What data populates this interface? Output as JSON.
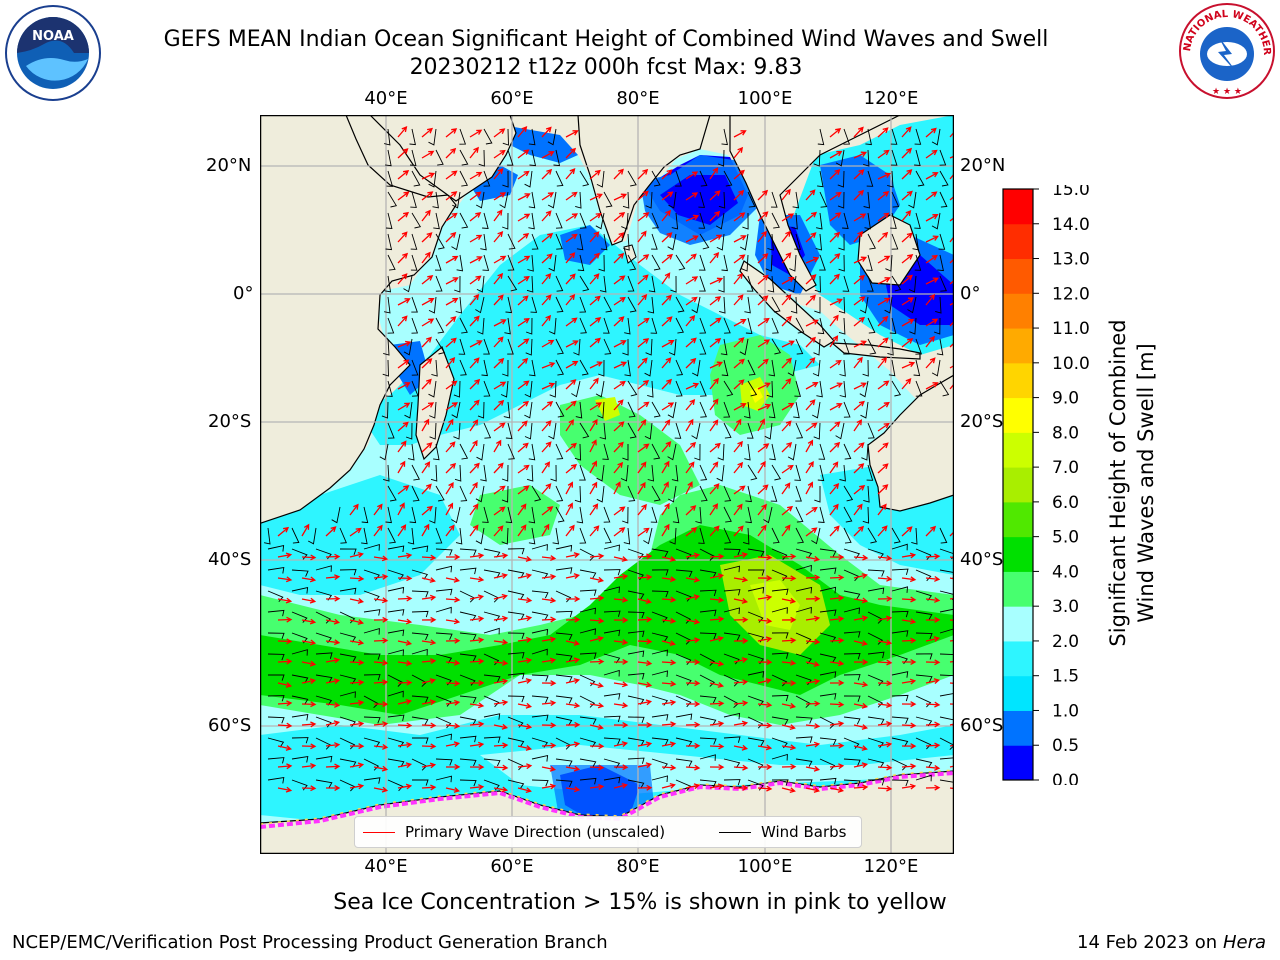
{
  "header": {
    "title_line1": "GEFS MEAN Indian Ocean Significant Height of Combined Wind Waves and Swell",
    "title_line2": "20230212 t12z 000h fcst   Max: 9.83"
  },
  "logos": {
    "noaa_text": "NOAA",
    "nws_text": "NATIONAL WEATHER SERVICE"
  },
  "map": {
    "type": "filled-contour map",
    "region": "Indian Ocean",
    "lon_ticks": [
      "40°E",
      "60°E",
      "80°E",
      "100°E",
      "120°E"
    ],
    "lat_ticks": [
      "20°N",
      "0°",
      "20°S",
      "40°S",
      "60°S"
    ],
    "gridlines": true,
    "colors": {
      "land": "#efeddc",
      "grid": "#b5b5b5",
      "wind_barb": "#000000",
      "wave_arrow": "#ff0000",
      "sea_ice": "#ff33ff"
    }
  },
  "colorbar": {
    "label": "Significant Height of Combined Wind Waves and Swell [m]",
    "label_line1": "Significant Height of Combined",
    "label_line2": "Wind Waves and Swell [m]",
    "ticks": [
      "0.0",
      "0.5",
      "1.0",
      "1.5",
      "2.0",
      "3.0",
      "4.0",
      "5.0",
      "6.0",
      "7.0",
      "8.0",
      "9.0",
      "10.0",
      "11.0",
      "12.0",
      "13.0",
      "14.0",
      "15.0"
    ],
    "colors": [
      "#0000ff",
      "#0073ff",
      "#00e5ff",
      "#2ef5ff",
      "#a8ffff",
      "#47ff6f",
      "#00e000",
      "#50e800",
      "#a9ee00",
      "#ccff00",
      "#ffff00",
      "#ffd500",
      "#ffaa00",
      "#ff8000",
      "#ff5a00",
      "#ff2d00",
      "#ff0000"
    ]
  },
  "legend": {
    "wave_label": "Primary Wave Direction (unscaled)",
    "barb_label": "Wind Barbs"
  },
  "footer": {
    "subtitle": "Sea Ice Concentration > 15% is shown in pink to yellow",
    "credit": "NCEP/EMC/Verification Post Processing Product Generation Branch",
    "date": "14 Feb 2023 on",
    "host": "Hera"
  }
}
